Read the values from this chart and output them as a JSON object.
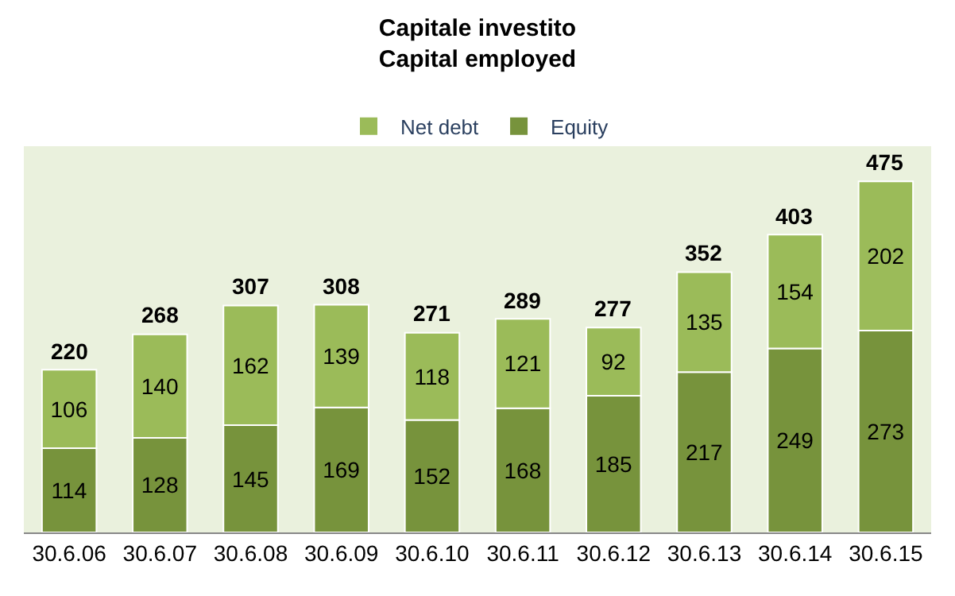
{
  "chart_data": {
    "type": "bar",
    "title": "Capitale investito\nCapital employed",
    "categories": [
      "30.6.06",
      "30.6.07",
      "30.6.08",
      "30.6.09",
      "30.6.10",
      "30.6.11",
      "30.6.12",
      "30.6.13",
      "30.6.14",
      "30.6.15"
    ],
    "series": [
      {
        "name": "Equity",
        "color": "#77933c",
        "values": [
          114,
          128,
          145,
          169,
          152,
          168,
          185,
          217,
          249,
          273
        ]
      },
      {
        "name": "Net debt",
        "color": "#9bbb59",
        "values": [
          106,
          140,
          162,
          139,
          118,
          121,
          92,
          135,
          154,
          202
        ]
      }
    ],
    "stacked": true,
    "data_labels": true,
    "totals": [
      "220",
      "268",
      "307",
      "308",
      "271",
      "289",
      "277",
      "352",
      "403",
      "475"
    ],
    "legend": "top",
    "grid": false
  }
}
